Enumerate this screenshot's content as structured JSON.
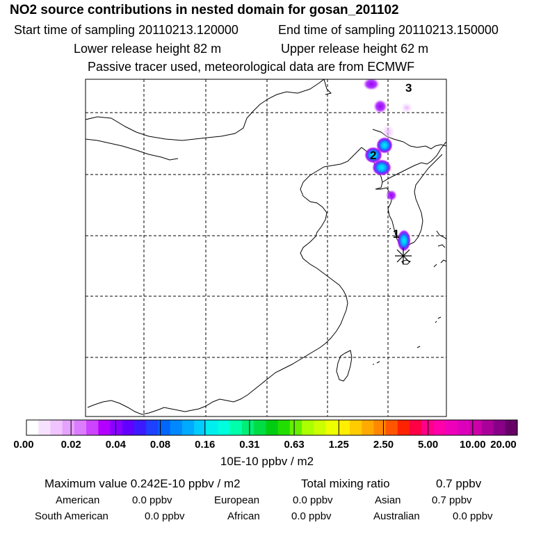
{
  "header": {
    "title": "NO2 source contributions in nested domain for gosan_201102",
    "start_label": "Start time of sampling 20110213.120000",
    "end_label": "End time of sampling 20110213.150000",
    "lower_label": "Lower release height   82 m",
    "upper_label": "Upper release height   62 m",
    "note": "Passive tracer used, meteorological data are from ECMWF"
  },
  "chart_data": {
    "type": "heatmap",
    "title": "NO2 source contributions in nested domain for gosan_201102",
    "colorbar": {
      "ticks": [
        "0.00",
        "0.02",
        "0.04",
        "0.08",
        "0.16",
        "0.31",
        "0.63",
        "1.25",
        "2.50",
        "5.00",
        "10.00",
        "20.00"
      ],
      "units": "10E-10 ppbv / m2",
      "colors": [
        "#ffffff",
        "#f6e2ff",
        "#f0c4ff",
        "#e6a2ff",
        "#dc7cff",
        "#cc44ff",
        "#b300ff",
        "#8a00ff",
        "#6200ff",
        "#3c1aff",
        "#1e40ff",
        "#0066ff",
        "#0088ff",
        "#00aaff",
        "#00ccff",
        "#00eeee",
        "#00ffdd",
        "#00ffaa",
        "#00ee77",
        "#00dd44",
        "#00cc11",
        "#22dd00",
        "#66ee00",
        "#aaff00",
        "#ccff00",
        "#eeff00",
        "#ffee00",
        "#ffcc00",
        "#ffaa00",
        "#ff8800",
        "#ff5500",
        "#ff2200",
        "#ff0044",
        "#ff0088",
        "#ff00aa",
        "#ee00bb",
        "#dd00bb",
        "#cc00aa",
        "#aa0099",
        "#880088",
        "#660066"
      ]
    },
    "markers": [
      {
        "label": "1",
        "lon": 127.0,
        "lat": 35.0
      },
      {
        "label": "2",
        "lon": 124.4,
        "lat": 40.3
      },
      {
        "label": "3",
        "lon": 126.3,
        "lat": 44.0
      }
    ],
    "receptor": {
      "name": "gosan",
      "lon": 126.2,
      "lat": 33.3
    },
    "blobs": [
      {
        "lon": 124.8,
        "lat": 44.2,
        "level": "0.04"
      },
      {
        "lon": 125.1,
        "lat": 42.6,
        "level": "0.04"
      },
      {
        "lon": 126.3,
        "lat": 42.3,
        "level": "0.02"
      },
      {
        "lon": 125.0,
        "lat": 41.3,
        "level": "0.02"
      },
      {
        "lon": 125.2,
        "lat": 40.8,
        "level": "0.16"
      },
      {
        "lon": 124.4,
        "lat": 40.3,
        "level": "0.16"
      },
      {
        "lon": 125.0,
        "lat": 39.7,
        "level": "0.16"
      },
      {
        "lon": 125.4,
        "lat": 37.8,
        "level": "0.04"
      },
      {
        "lon": 127.0,
        "lat": 34.8,
        "level": "0.16"
      }
    ],
    "max_label": "Maximum value  0.242E-10 ppbv / m2",
    "total_label": "Total mixing ratio",
    "total_value": "0.7 ppbv",
    "regions": [
      {
        "name": "American",
        "value": "0.0 ppbv"
      },
      {
        "name": "European",
        "value": "0.0 ppbv"
      },
      {
        "name": "Asian",
        "value": "0.7 ppbv"
      },
      {
        "name": "South American",
        "value": "0.0 ppbv"
      },
      {
        "name": "African",
        "value": "0.0 ppbv"
      },
      {
        "name": "Australian",
        "value": "0.0 ppbv"
      }
    ]
  }
}
